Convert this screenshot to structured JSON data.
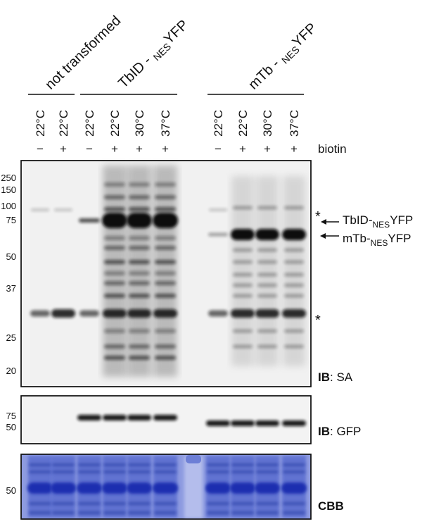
{
  "groups": [
    {
      "parts": [
        "not transformed"
      ]
    },
    {
      "parts": [
        "TbID - ",
        "NES",
        "YFP"
      ]
    },
    {
      "parts": [
        "mTb - ",
        "NES",
        "YFP"
      ]
    }
  ],
  "lanes": [
    {
      "temp": "22°C",
      "biotin": "−"
    },
    {
      "temp": "22°C",
      "biotin": "+"
    },
    {
      "temp": "22°C",
      "biotin": "−"
    },
    {
      "temp": "22°C",
      "biotin": "+"
    },
    {
      "temp": "30°C",
      "biotin": "+"
    },
    {
      "temp": "37°C",
      "biotin": "+"
    },
    {
      "temp": "22°C",
      "biotin": "−"
    },
    {
      "temp": "22°C",
      "biotin": "+"
    },
    {
      "temp": "30°C",
      "biotin": "+"
    },
    {
      "temp": "37°C",
      "biotin": "+"
    }
  ],
  "biotin_label": "biotin",
  "panels": [
    {
      "markers": [
        "250",
        "150",
        "100",
        "75",
        "50",
        "37",
        "25",
        "20"
      ],
      "label_bold": "IB",
      "label_rest": ": SA"
    },
    {
      "markers": [
        "75",
        "50"
      ],
      "label_bold": "IB",
      "label_rest": ": GFP"
    },
    {
      "markers": [
        "50"
      ],
      "label_bold": "CBB"
    }
  ],
  "annotations": [
    {
      "text": "*"
    },
    {
      "parts": [
        "TbID-",
        "NES",
        "YFP"
      ]
    },
    {
      "parts": [
        "mTb-",
        "NES",
        "YFP"
      ]
    },
    {
      "text": "*"
    }
  ]
}
